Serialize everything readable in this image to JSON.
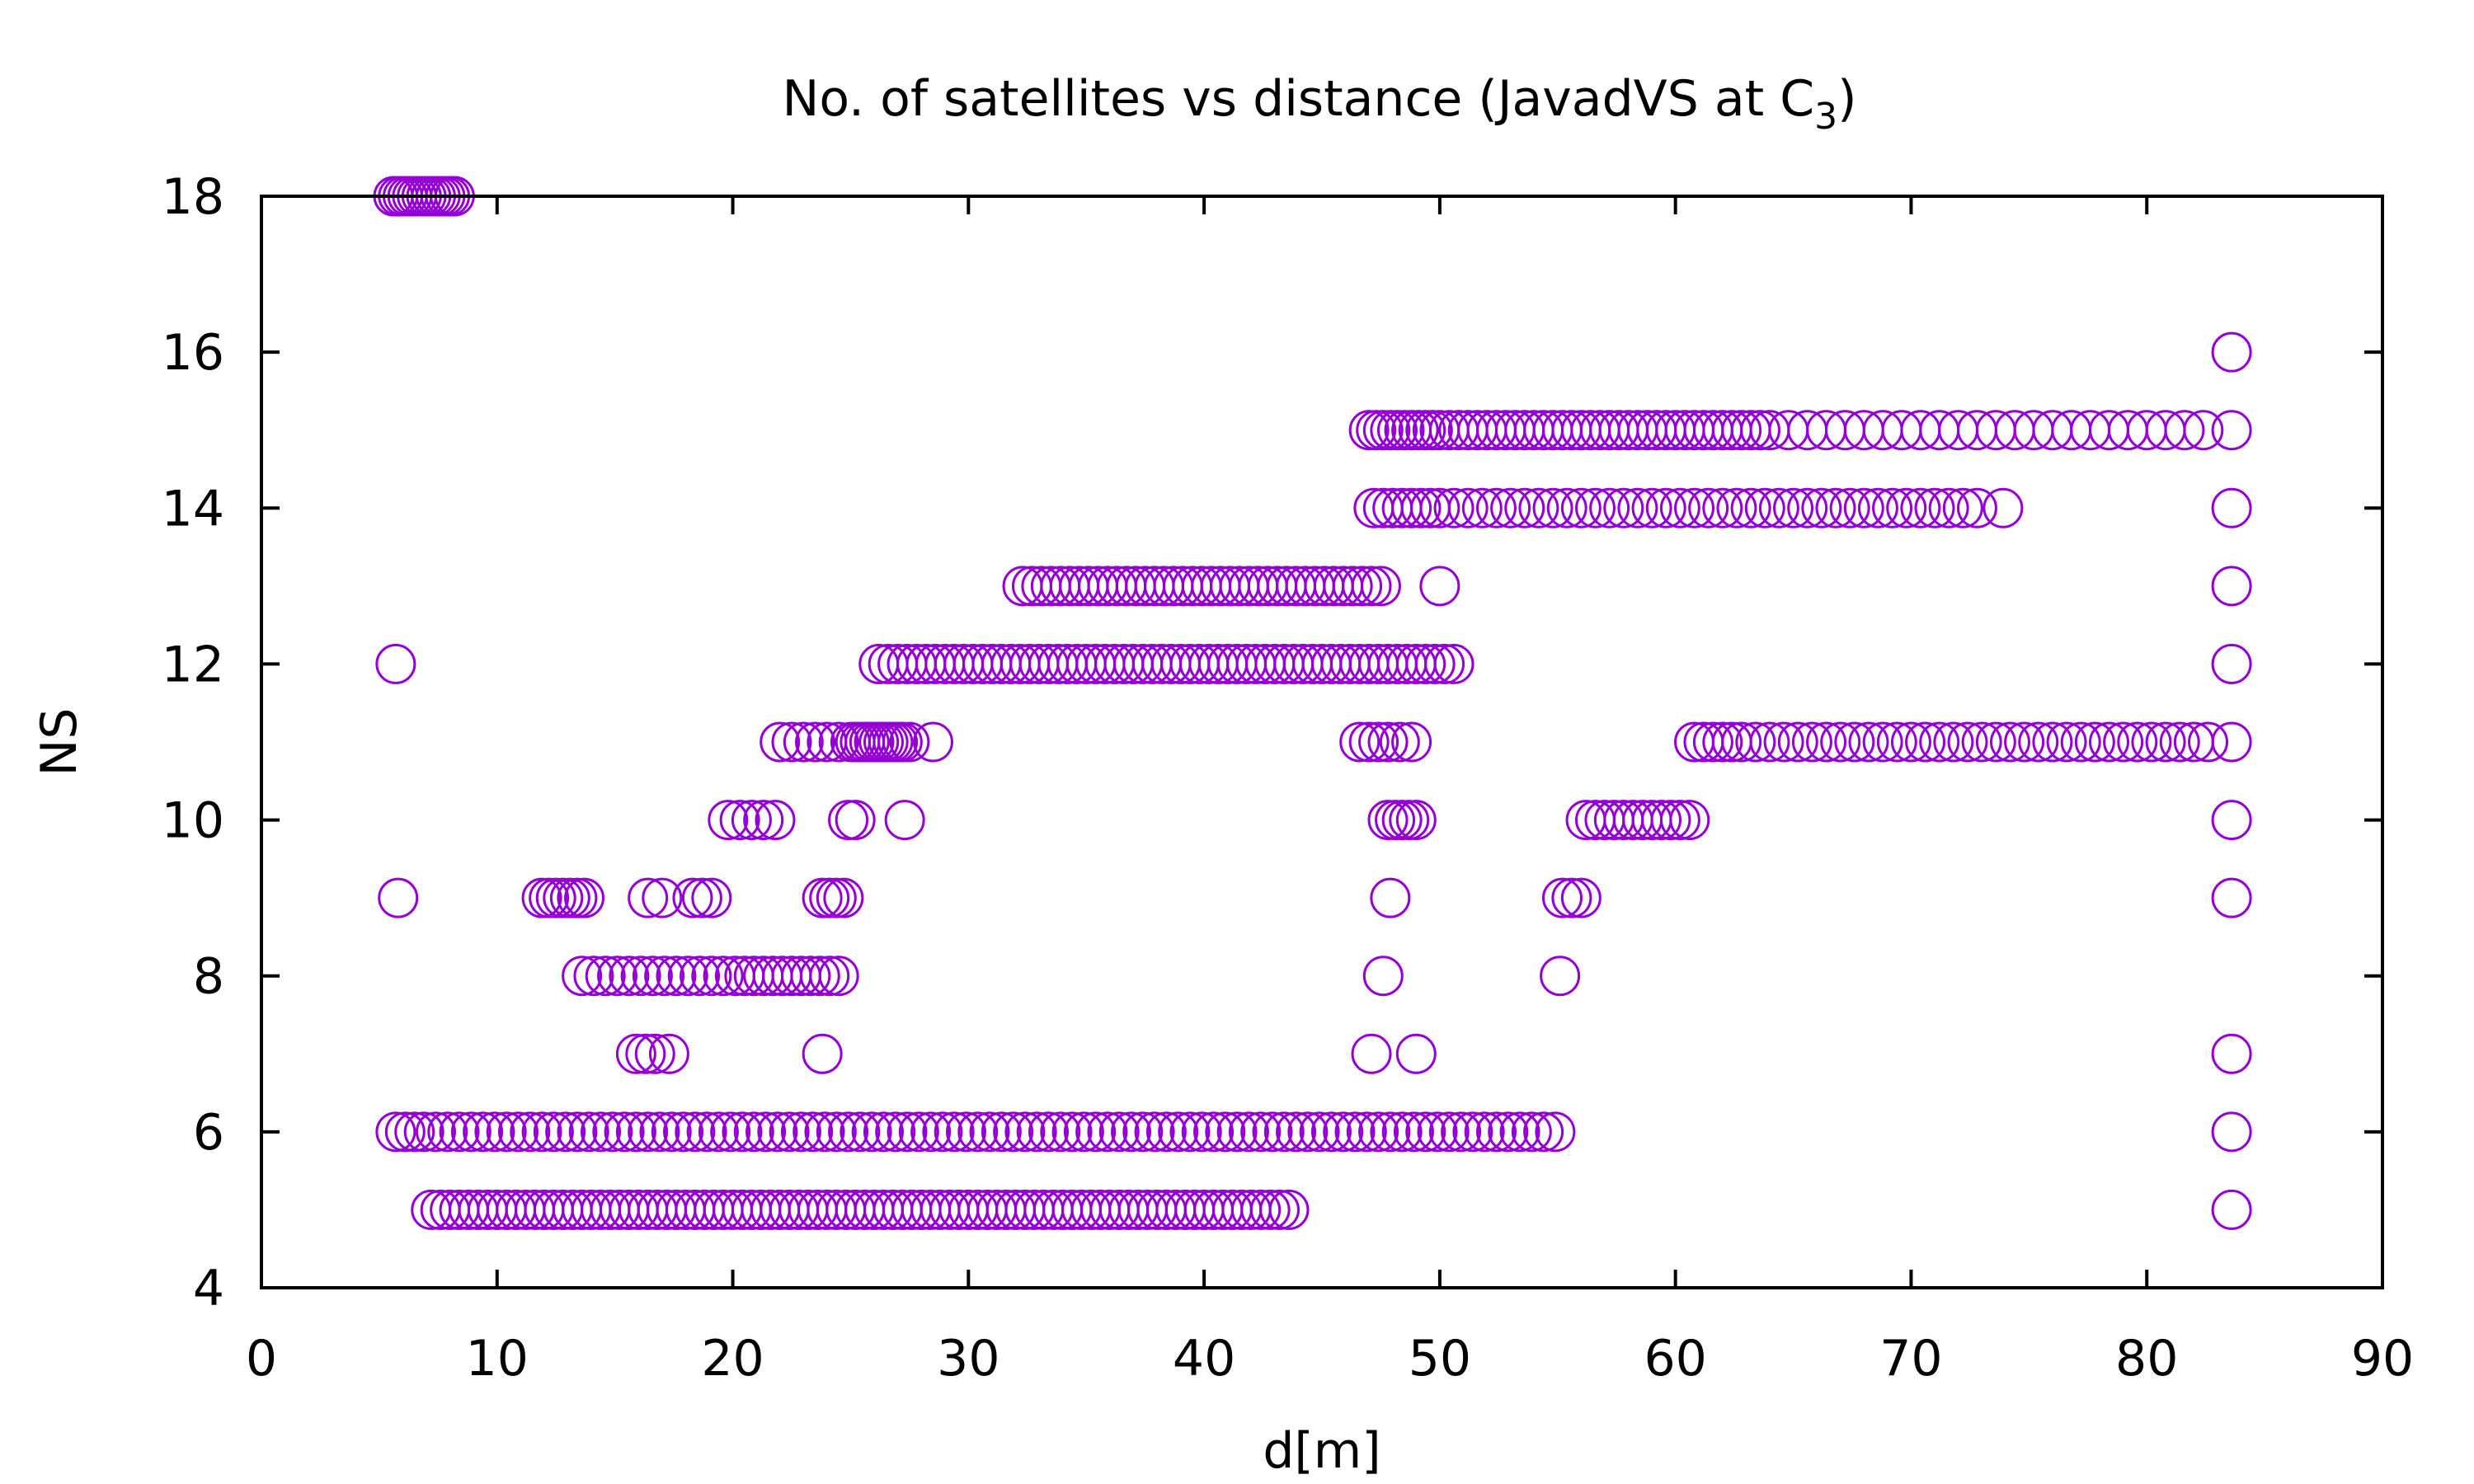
{
  "chart_data": {
    "type": "scatter",
    "title": "No. of satellites vs distance (JavadVS at C",
    "title_subscript": "3",
    "title_suffix": ")",
    "xlabel": "d[m]",
    "ylabel": "NS",
    "xlim": [
      0,
      90
    ],
    "ylim": [
      4,
      18
    ],
    "x_ticks": [
      "0",
      "10",
      "20",
      "30",
      "40",
      "50",
      "60",
      "70",
      "80",
      "90"
    ],
    "y_ticks": [
      "4",
      "6",
      "8",
      "10",
      "12",
      "14",
      "16",
      "18"
    ],
    "grid": false,
    "legend": "none",
    "marker": "open-circle",
    "color": "#9400D3",
    "rows": [
      {
        "y": 18,
        "x": [
          5.6,
          5.8,
          6.0,
          6.2,
          6.4,
          6.6,
          6.8,
          7.0,
          7.2,
          7.4,
          7.6,
          7.8,
          8.0,
          8.2
        ]
      },
      {
        "y": 16,
        "x": [
          83.6
        ]
      },
      {
        "y": 15,
        "x": [
          47.0,
          47.3,
          47.6,
          47.9,
          48.2,
          48.5,
          48.8,
          49.1,
          49.4,
          49.7,
          50.0,
          50.4,
          50.8,
          51.2,
          51.6,
          52.0,
          52.4,
          52.8,
          53.2,
          53.6,
          54.0,
          54.4,
          54.8,
          55.2,
          55.6,
          56.0,
          56.4,
          56.8,
          57.2,
          57.6,
          58.0,
          58.4,
          58.8,
          59.2,
          59.6,
          60.0,
          60.4,
          60.8,
          61.2,
          61.6,
          62.0,
          62.4,
          62.8,
          63.2,
          63.6,
          64.0,
          64.8,
          65.6,
          66.4,
          67.2,
          68.0,
          68.8,
          69.6,
          70.4,
          71.2,
          72.0,
          72.8,
          73.6,
          74.4,
          75.2,
          76.0,
          76.8,
          77.6,
          78.4,
          79.2,
          80.0,
          80.8,
          81.6,
          82.4,
          83.6
        ]
      },
      {
        "y": 14,
        "x": [
          47.2,
          47.6,
          48.0,
          48.4,
          48.8,
          49.2,
          49.6,
          50.0,
          50.6,
          51.2,
          51.8,
          52.4,
          53.0,
          53.6,
          54.2,
          54.8,
          55.4,
          56.0,
          56.6,
          57.2,
          57.8,
          58.4,
          59.0,
          59.6,
          60.2,
          60.8,
          61.4,
          62.0,
          62.6,
          63.2,
          63.8,
          64.4,
          65.0,
          65.6,
          66.2,
          66.8,
          67.4,
          68.0,
          68.6,
          69.2,
          69.8,
          70.4,
          71.0,
          71.6,
          72.2,
          72.8,
          73.9,
          83.6
        ]
      },
      {
        "y": 13,
        "x": [
          32.3,
          32.7,
          33.1,
          33.5,
          33.9,
          34.3,
          34.7,
          35.1,
          35.5,
          35.9,
          36.3,
          36.7,
          37.1,
          37.5,
          37.9,
          38.3,
          38.7,
          39.1,
          39.5,
          39.9,
          40.3,
          40.7,
          41.1,
          41.5,
          41.9,
          42.3,
          42.7,
          43.1,
          43.5,
          43.9,
          44.3,
          44.7,
          45.1,
          45.5,
          45.9,
          46.3,
          46.7,
          47.1,
          47.5,
          50.0,
          83.6
        ]
      },
      {
        "y": 12,
        "x": [
          5.7,
          26.2,
          26.6,
          27.0,
          27.4,
          27.8,
          28.2,
          28.6,
          29.0,
          29.4,
          29.8,
          30.2,
          30.6,
          31.0,
          31.4,
          31.8,
          32.2,
          32.6,
          33.0,
          33.4,
          33.8,
          34.2,
          34.6,
          35.0,
          35.4,
          35.8,
          36.2,
          36.6,
          37.0,
          37.4,
          37.8,
          38.2,
          38.6,
          39.0,
          39.4,
          39.8,
          40.2,
          40.6,
          41.0,
          41.4,
          41.8,
          42.2,
          42.6,
          43.0,
          43.4,
          43.8,
          44.2,
          44.6,
          45.0,
          45.4,
          45.8,
          46.2,
          46.6,
          47.0,
          47.4,
          47.8,
          48.2,
          48.6,
          49.0,
          49.4,
          49.8,
          50.2,
          50.6,
          83.6
        ]
      },
      {
        "y": 11,
        "x": [
          22.0,
          22.5,
          23.0,
          23.5,
          24.0,
          24.5,
          25.0,
          25.2,
          25.4,
          25.6,
          25.8,
          26.0,
          26.2,
          26.4,
          26.6,
          26.8,
          27.0,
          27.2,
          27.5,
          28.5,
          46.6,
          47.0,
          47.4,
          47.8,
          48.3,
          48.8,
          60.8,
          61.2,
          61.6,
          62.0,
          62.4,
          62.8,
          63.4,
          64.0,
          64.6,
          65.2,
          65.8,
          66.4,
          67.0,
          67.6,
          68.2,
          68.8,
          69.4,
          70.0,
          70.6,
          71.2,
          71.8,
          72.4,
          73.0,
          73.6,
          74.2,
          74.8,
          75.4,
          76.0,
          76.6,
          77.2,
          77.8,
          78.4,
          79.0,
          79.6,
          80.2,
          80.8,
          81.4,
          82.0,
          82.6,
          83.6
        ]
      },
      {
        "y": 10,
        "x": [
          19.8,
          20.3,
          20.8,
          21.3,
          21.8,
          24.9,
          25.2,
          27.3,
          47.8,
          48.1,
          48.4,
          48.7,
          49.0,
          56.2,
          56.6,
          57.0,
          57.4,
          57.8,
          58.2,
          58.6,
          59.0,
          59.4,
          59.8,
          60.2,
          60.6,
          83.6
        ]
      },
      {
        "y": 9,
        "x": [
          5.8,
          11.9,
          12.2,
          12.5,
          12.8,
          13.1,
          13.4,
          13.7,
          16.4,
          17.0,
          18.3,
          18.7,
          19.1,
          23.8,
          24.1,
          24.4,
          24.7,
          47.9,
          55.2,
          55.6,
          56.0,
          83.6
        ]
      },
      {
        "y": 8,
        "x": [
          13.6,
          14.1,
          14.6,
          15.1,
          15.6,
          16.1,
          16.6,
          17.1,
          17.6,
          18.1,
          18.6,
          19.1,
          19.6,
          20.1,
          20.5,
          20.9,
          21.3,
          21.7,
          22.1,
          22.5,
          22.9,
          23.3,
          23.7,
          24.1,
          24.5,
          47.6,
          55.1
        ]
      },
      {
        "y": 7,
        "x": [
          15.9,
          16.3,
          16.7,
          17.3,
          23.8,
          47.1,
          49.0,
          83.6
        ]
      },
      {
        "y": 6,
        "x": [
          5.7,
          6.1,
          6.5,
          6.9,
          7.4,
          7.9,
          8.4,
          8.9,
          9.4,
          9.9,
          10.4,
          10.9,
          11.4,
          11.9,
          12.4,
          12.9,
          13.4,
          13.9,
          14.4,
          14.9,
          15.4,
          15.9,
          16.4,
          16.9,
          17.4,
          17.9,
          18.4,
          18.9,
          19.4,
          19.9,
          20.4,
          20.9,
          21.4,
          21.9,
          22.4,
          22.9,
          23.4,
          23.9,
          24.4,
          24.9,
          25.4,
          25.9,
          26.4,
          26.9,
          27.4,
          27.9,
          28.4,
          28.9,
          29.4,
          29.9,
          30.4,
          30.9,
          31.4,
          31.9,
          32.4,
          32.9,
          33.4,
          33.9,
          34.4,
          34.9,
          35.4,
          35.9,
          36.4,
          36.9,
          37.4,
          37.9,
          38.4,
          38.9,
          39.4,
          39.9,
          40.4,
          40.9,
          41.4,
          41.9,
          42.4,
          42.9,
          43.4,
          43.9,
          44.4,
          44.9,
          45.4,
          45.9,
          46.4,
          46.9,
          47.4,
          47.9,
          48.4,
          48.9,
          49.4,
          49.9,
          50.4,
          50.9,
          51.4,
          51.9,
          52.4,
          52.9,
          53.4,
          53.9,
          54.4,
          54.9,
          83.6
        ]
      },
      {
        "y": 5,
        "x": [
          7.2,
          7.6,
          8.0,
          8.4,
          8.8,
          9.2,
          9.6,
          10.0,
          10.4,
          10.8,
          11.2,
          11.6,
          12.0,
          12.4,
          12.8,
          13.2,
          13.6,
          14.0,
          14.4,
          14.8,
          15.2,
          15.6,
          16.0,
          16.4,
          16.8,
          17.2,
          17.6,
          18.0,
          18.4,
          18.8,
          19.2,
          19.6,
          20.0,
          20.4,
          20.8,
          21.2,
          21.6,
          22.0,
          22.4,
          22.8,
          23.2,
          23.6,
          24.0,
          24.4,
          24.8,
          25.2,
          25.6,
          26.0,
          26.4,
          26.8,
          27.2,
          27.6,
          28.0,
          28.4,
          28.8,
          29.2,
          29.6,
          30.0,
          30.4,
          30.8,
          31.2,
          31.6,
          32.0,
          32.4,
          32.8,
          33.2,
          33.6,
          34.0,
          34.4,
          34.8,
          35.2,
          35.6,
          36.0,
          36.4,
          36.8,
          37.2,
          37.6,
          38.0,
          38.4,
          38.8,
          39.2,
          39.6,
          40.0,
          40.4,
          40.8,
          41.2,
          41.6,
          42.0,
          42.4,
          42.8,
          43.2,
          43.6,
          83.6
        ]
      }
    ]
  }
}
